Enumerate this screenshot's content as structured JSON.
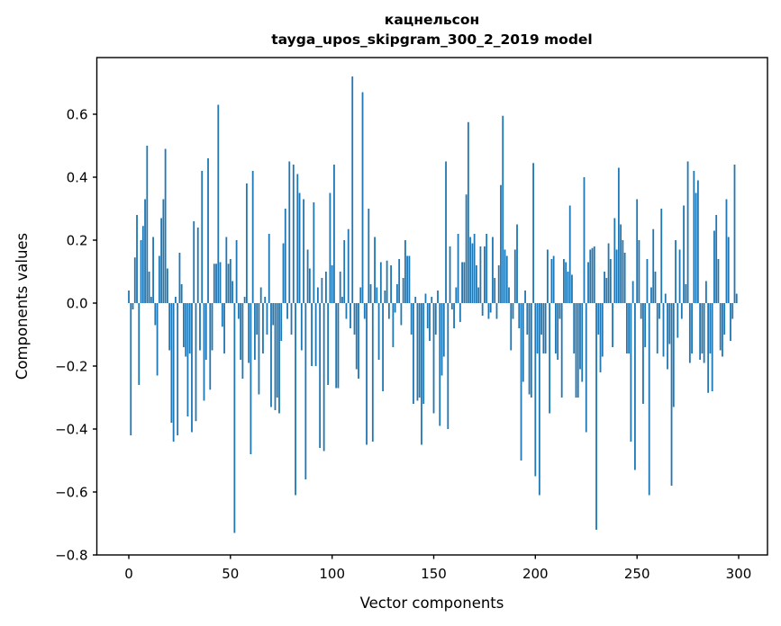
{
  "title": {
    "line1": "кацнельсон",
    "line2": "tayga_upos_skipgram_300_2_2019 model"
  },
  "chart_data": {
    "type": "bar",
    "title": "кацнельсон\ntayga_upos_skipgram_300_2_2019 model",
    "xlabel": "Vector components",
    "ylabel": "Components values",
    "x_ticks": [
      0,
      50,
      100,
      150,
      200,
      250,
      300
    ],
    "y_ticks": [
      0.6,
      0.4,
      0.2,
      0.0,
      -0.2,
      -0.4,
      -0.6,
      -0.8
    ],
    "xlim": [
      -16,
      314
    ],
    "ylim": [
      -0.8,
      0.78
    ],
    "grid": false,
    "legend": null,
    "n_components": 300,
    "bar_color": "#1f77b4",
    "values": [
      0.04,
      -0.42,
      -0.02,
      0.145,
      0.28,
      -0.26,
      0.2,
      0.245,
      0.33,
      0.5,
      0.1,
      0.02,
      0.21,
      -0.07,
      -0.23,
      0.15,
      0.27,
      0.33,
      0.49,
      0.11,
      -0.15,
      -0.38,
      -0.44,
      0.02,
      -0.42,
      0.16,
      0.06,
      -0.14,
      -0.17,
      -0.36,
      -0.16,
      -0.41,
      0.26,
      -0.375,
      0.24,
      -0.15,
      0.42,
      -0.31,
      -0.18,
      0.46,
      -0.275,
      -0.15,
      0.125,
      0.125,
      0.63,
      0.13,
      -0.075,
      -0.16,
      0.21,
      0.125,
      0.14,
      0.07,
      -0.73,
      0.2,
      -0.05,
      -0.18,
      -0.24,
      0.02,
      0.38,
      -0.19,
      -0.48,
      0.42,
      -0.18,
      -0.1,
      -0.29,
      0.05,
      -0.16,
      0.02,
      -0.1,
      0.22,
      -0.33,
      -0.07,
      -0.34,
      -0.3,
      -0.35,
      -0.12,
      0.19,
      0.3,
      -0.05,
      0.45,
      -0.1,
      0.44,
      -0.61,
      0.41,
      0.35,
      -0.15,
      0.33,
      -0.56,
      0.17,
      0.11,
      -0.2,
      0.32,
      -0.2,
      0.05,
      -0.46,
      0.08,
      -0.47,
      0.1,
      -0.26,
      0.35,
      0.12,
      0.44,
      -0.27,
      -0.27,
      0.1,
      0.02,
      0.2,
      -0.05,
      0.235,
      -0.08,
      0.72,
      -0.1,
      -0.21,
      -0.24,
      0.05,
      0.67,
      -0.05,
      -0.45,
      0.3,
      0.06,
      -0.44,
      0.21,
      0.05,
      -0.18,
      0.13,
      -0.28,
      0.04,
      0.135,
      -0.05,
      0.12,
      -0.14,
      -0.03,
      0.06,
      0.14,
      -0.07,
      0.08,
      0.2,
      0.15,
      0.15,
      -0.1,
      -0.32,
      0.02,
      -0.31,
      -0.3,
      -0.45,
      -0.32,
      0.03,
      -0.08,
      -0.12,
      0.02,
      -0.35,
      -0.1,
      0.04,
      -0.39,
      -0.23,
      -0.17,
      0.45,
      -0.4,
      0.18,
      -0.02,
      -0.08,
      0.05,
      0.22,
      -0.06,
      0.13,
      0.13,
      0.345,
      0.575,
      0.21,
      0.19,
      0.22,
      0.12,
      0.05,
      0.18,
      -0.04,
      0.18,
      0.22,
      -0.05,
      -0.03,
      0.21,
      0.08,
      -0.05,
      0.12,
      0.375,
      0.595,
      0.17,
      0.15,
      0.05,
      -0.15,
      -0.05,
      0.17,
      0.25,
      -0.08,
      -0.5,
      -0.25,
      0.04,
      -0.1,
      -0.29,
      -0.3,
      0.445,
      -0.55,
      -0.16,
      -0.61,
      -0.1,
      -0.16,
      -0.16,
      0.17,
      -0.35,
      0.14,
      0.15,
      -0.16,
      -0.18,
      -0.05,
      -0.3,
      0.14,
      0.13,
      0.1,
      0.31,
      0.09,
      -0.16,
      -0.3,
      -0.3,
      -0.21,
      -0.25,
      0.4,
      -0.41,
      0.13,
      0.17,
      0.175,
      0.18,
      -0.72,
      -0.1,
      -0.22,
      -0.17,
      0.1,
      0.08,
      0.19,
      0.14,
      -0.14,
      0.27,
      0.17,
      0.43,
      0.25,
      0.2,
      0.16,
      -0.16,
      -0.16,
      -0.44,
      0.07,
      -0.53,
      0.33,
      0.2,
      -0.05,
      -0.32,
      -0.14,
      0.14,
      -0.61,
      0.05,
      0.235,
      0.1,
      -0.16,
      -0.05,
      0.3,
      -0.17,
      0.03,
      -0.21,
      -0.13,
      -0.58,
      -0.33,
      0.2,
      -0.11,
      0.17,
      -0.05,
      0.31,
      0.06,
      0.45,
      -0.19,
      -0.16,
      0.42,
      0.35,
      0.39,
      -0.18,
      -0.16,
      -0.19,
      0.07,
      -0.285,
      -0.16,
      -0.28,
      0.23,
      0.28,
      0.14,
      -0.15,
      -0.17,
      -0.1,
      0.33,
      0.21,
      -0.12,
      -0.05,
      0.44,
      0.03
    ]
  },
  "colors": {
    "bar": "#1f77b4",
    "axis": "#000000",
    "background": "#ffffff"
  }
}
